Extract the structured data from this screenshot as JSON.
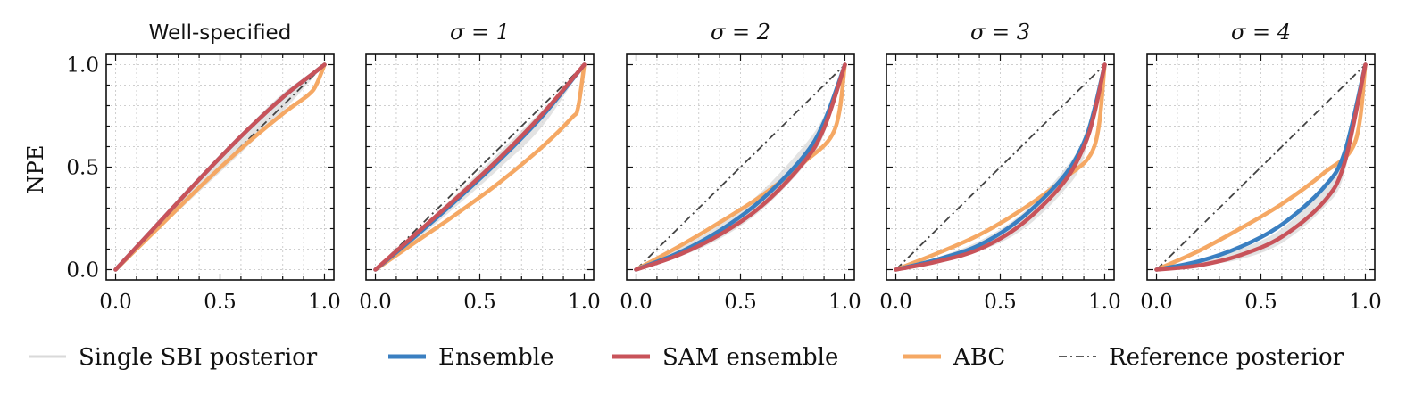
{
  "chart_data": {
    "type": "line",
    "ylabel": "NPE",
    "x_ticks": [
      "0.0",
      "0.5",
      "1.0"
    ],
    "y_ticks": [
      "0.0",
      "0.5",
      "1.0"
    ],
    "xlim": [
      0,
      1
    ],
    "ylim": [
      0,
      1
    ],
    "grid": true,
    "legend_position": "bottom",
    "colors": {
      "single_sbi": "#d9d9d9",
      "ensemble": "#3a7fc1",
      "sam_ensemble": "#c8535a",
      "abc": "#f5a864",
      "reference": "#444444"
    },
    "legend": [
      {
        "key": "single_sbi",
        "label": "Single SBI posterior",
        "style": "solid"
      },
      {
        "key": "ensemble",
        "label": "Ensemble",
        "style": "solid"
      },
      {
        "key": "sam_ensemble",
        "label": "SAM ensemble",
        "style": "solid"
      },
      {
        "key": "abc",
        "label": "ABC",
        "style": "solid"
      },
      {
        "key": "reference",
        "label": "Reference posterior",
        "style": "dashdot"
      }
    ],
    "panels": [
      {
        "title": "Well-specified",
        "title_math": false,
        "single_sbi_band": {
          "x": [
            0,
            0.2,
            0.4,
            0.6,
            0.8,
            1.0
          ],
          "lower": [
            0,
            0.19,
            0.38,
            0.57,
            0.77,
            1.0
          ],
          "upper": [
            0,
            0.23,
            0.45,
            0.66,
            0.86,
            1.0
          ]
        },
        "series": {
          "abc": {
            "x": [
              0,
              0.2,
              0.4,
              0.6,
              0.8,
              0.92,
              0.96,
              1.0
            ],
            "y": [
              0,
              0.2,
              0.4,
              0.59,
              0.76,
              0.85,
              0.9,
              1.0
            ]
          },
          "ensemble": {
            "x": [
              0,
              0.2,
              0.4,
              0.6,
              0.8,
              0.95,
              1.0
            ],
            "y": [
              0,
              0.22,
              0.44,
              0.65,
              0.84,
              0.96,
              1.0
            ]
          },
          "sam_ensemble": {
            "x": [
              0,
              0.2,
              0.4,
              0.6,
              0.8,
              0.95,
              1.0
            ],
            "y": [
              0,
              0.22,
              0.44,
              0.65,
              0.84,
              0.96,
              1.0
            ]
          }
        }
      },
      {
        "title": "σ = 1",
        "title_math": true,
        "single_sbi_band": {
          "x": [
            0,
            0.2,
            0.4,
            0.6,
            0.8,
            1.0
          ],
          "lower": [
            0,
            0.15,
            0.32,
            0.5,
            0.7,
            1.0
          ],
          "upper": [
            0,
            0.19,
            0.38,
            0.58,
            0.78,
            1.0
          ]
        },
        "series": {
          "abc": {
            "x": [
              0,
              0.2,
              0.4,
              0.6,
              0.8,
              0.94,
              0.97,
              1.0
            ],
            "y": [
              0,
              0.14,
              0.28,
              0.43,
              0.6,
              0.74,
              0.79,
              1.0
            ]
          },
          "ensemble": {
            "x": [
              0,
              0.2,
              0.4,
              0.6,
              0.8,
              1.0
            ],
            "y": [
              0,
              0.17,
              0.35,
              0.54,
              0.75,
              1.0
            ]
          },
          "sam_ensemble": {
            "x": [
              0,
              0.2,
              0.4,
              0.6,
              0.8,
              1.0
            ],
            "y": [
              0,
              0.18,
              0.36,
              0.55,
              0.76,
              1.0
            ]
          }
        }
      },
      {
        "title": "σ = 2",
        "title_math": true,
        "single_sbi_band": {
          "x": [
            0,
            0.2,
            0.4,
            0.6,
            0.8,
            0.9,
            1.0
          ],
          "lower": [
            0,
            0.06,
            0.15,
            0.29,
            0.5,
            0.66,
            1.0
          ],
          "upper": [
            0,
            0.1,
            0.22,
            0.38,
            0.6,
            0.75,
            1.0
          ]
        },
        "series": {
          "abc": {
            "x": [
              0,
              0.2,
              0.4,
              0.6,
              0.8,
              0.95,
              1.0
            ],
            "y": [
              0,
              0.11,
              0.23,
              0.36,
              0.52,
              0.68,
              1.0
            ]
          },
          "ensemble": {
            "x": [
              0,
              0.2,
              0.4,
              0.6,
              0.8,
              0.9,
              1.0
            ],
            "y": [
              0,
              0.08,
              0.19,
              0.34,
              0.55,
              0.72,
              1.0
            ]
          },
          "sam_ensemble": {
            "x": [
              0,
              0.2,
              0.4,
              0.6,
              0.8,
              0.9,
              1.0
            ],
            "y": [
              0,
              0.07,
              0.17,
              0.31,
              0.52,
              0.69,
              1.0
            ]
          }
        }
      },
      {
        "title": "σ = 3",
        "title_math": true,
        "single_sbi_band": {
          "x": [
            0,
            0.2,
            0.4,
            0.6,
            0.8,
            0.9,
            1.0
          ],
          "lower": [
            0,
            0.03,
            0.09,
            0.19,
            0.38,
            0.55,
            1.0
          ],
          "upper": [
            0,
            0.06,
            0.14,
            0.27,
            0.48,
            0.65,
            1.0
          ]
        },
        "series": {
          "abc": {
            "x": [
              0,
              0.2,
              0.4,
              0.6,
              0.8,
              0.95,
              1.0
            ],
            "y": [
              0,
              0.08,
              0.17,
              0.29,
              0.44,
              0.6,
              1.0
            ]
          },
          "ensemble": {
            "x": [
              0,
              0.2,
              0.4,
              0.6,
              0.8,
              0.9,
              0.95,
              1.0
            ],
            "y": [
              0,
              0.05,
              0.12,
              0.25,
              0.45,
              0.62,
              0.78,
              1.0
            ]
          },
          "sam_ensemble": {
            "x": [
              0,
              0.2,
              0.4,
              0.6,
              0.8,
              0.9,
              0.95,
              1.0
            ],
            "y": [
              0,
              0.04,
              0.1,
              0.22,
              0.42,
              0.6,
              0.76,
              1.0
            ]
          }
        }
      },
      {
        "title": "σ = 4",
        "title_math": true,
        "single_sbi_band": {
          "x": [
            0,
            0.2,
            0.4,
            0.6,
            0.8,
            0.9,
            1.0
          ],
          "lower": [
            0,
            0.02,
            0.05,
            0.13,
            0.3,
            0.47,
            1.0
          ],
          "upper": [
            0,
            0.04,
            0.1,
            0.2,
            0.4,
            0.57,
            1.0
          ]
        },
        "series": {
          "abc": {
            "x": [
              0,
              0.2,
              0.4,
              0.6,
              0.8,
              0.95,
              1.0
            ],
            "y": [
              0,
              0.09,
              0.2,
              0.32,
              0.47,
              0.62,
              1.0
            ]
          },
          "ensemble": {
            "x": [
              0,
              0.2,
              0.4,
              0.6,
              0.8,
              0.9,
              1.0
            ],
            "y": [
              0,
              0.04,
              0.11,
              0.22,
              0.4,
              0.57,
              1.0
            ]
          },
          "sam_ensemble": {
            "x": [
              0,
              0.2,
              0.4,
              0.6,
              0.8,
              0.9,
              1.0
            ],
            "y": [
              0,
              0.02,
              0.07,
              0.16,
              0.33,
              0.52,
              1.0
            ]
          }
        }
      }
    ]
  }
}
